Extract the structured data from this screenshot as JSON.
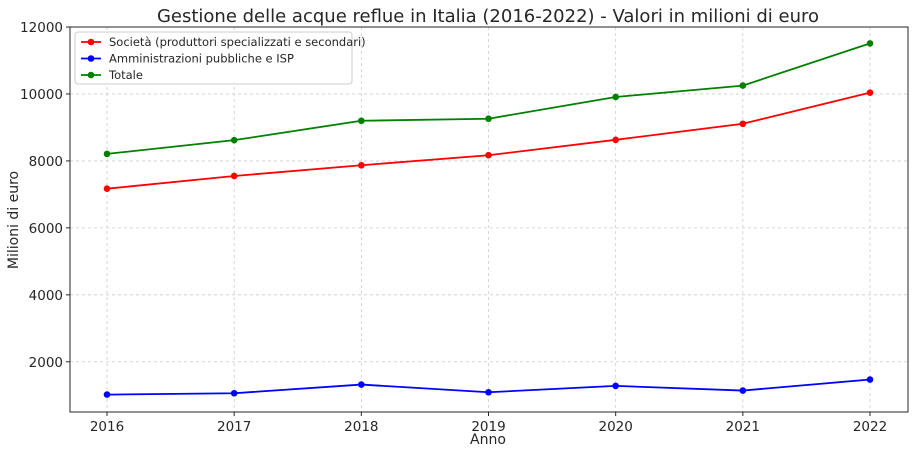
{
  "chart_data": {
    "type": "line",
    "title": "Gestione delle acque reflue in Italia (2016-2022) - Valori in milioni di euro",
    "xlabel": "Anno",
    "ylabel": "Milioni di euro",
    "categories": [
      "2016",
      "2017",
      "2018",
      "2019",
      "2020",
      "2021",
      "2022"
    ],
    "yticks": [
      "2000",
      "4000",
      "6000",
      "8000",
      "10000",
      "12000"
    ],
    "ylim": [
      500,
      12000
    ],
    "grid": true,
    "legend_position": "top-left",
    "series": [
      {
        "name": "Società (produttori specializzati e secondari)",
        "color": "#ff0000",
        "values": [
          7170,
          7550,
          7870,
          8170,
          8630,
          9110,
          10040
        ]
      },
      {
        "name": "Amministrazioni pubbliche e ISP",
        "color": "#0000ff",
        "values": [
          1020,
          1060,
          1320,
          1090,
          1280,
          1140,
          1470
        ]
      },
      {
        "name": "Totale",
        "color": "#008000",
        "values": [
          8210,
          8620,
          9200,
          9260,
          9910,
          10250,
          11510
        ]
      }
    ]
  }
}
